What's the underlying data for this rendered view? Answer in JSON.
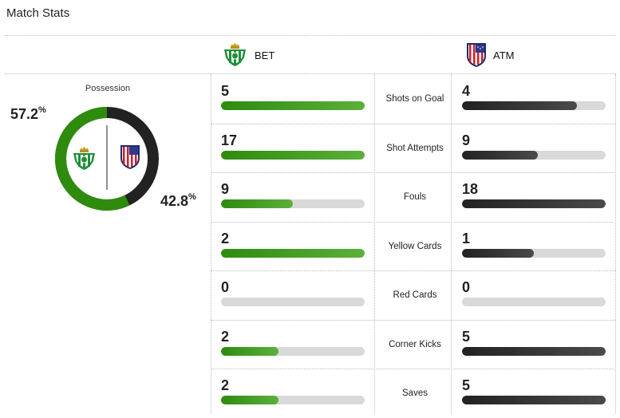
{
  "title": "Match Stats",
  "home": {
    "abbr": "BET",
    "crest_icon": "real-betis-crest-icon",
    "color": "#2e8b0e"
  },
  "away": {
    "abbr": "ATM",
    "crest_icon": "atletico-madrid-crest-icon",
    "color": "#222222"
  },
  "possession": {
    "label": "Possession",
    "home_value": "57.2",
    "away_value": "42.8",
    "unit": "%",
    "home_fraction": 0.572,
    "away_fraction": 0.428
  },
  "stats": [
    {
      "label": "Shots on Goal",
      "home": "5",
      "away": "4",
      "home_fill": 1.0,
      "away_fill": 0.8
    },
    {
      "label": "Shot Attempts",
      "home": "17",
      "away": "9",
      "home_fill": 1.0,
      "away_fill": 0.53
    },
    {
      "label": "Fouls",
      "home": "9",
      "away": "18",
      "home_fill": 0.5,
      "away_fill": 1.0
    },
    {
      "label": "Yellow Cards",
      "home": "2",
      "away": "1",
      "home_fill": 1.0,
      "away_fill": 0.5
    },
    {
      "label": "Red Cards",
      "home": "0",
      "away": "0",
      "home_fill": 0.0,
      "away_fill": 0.0
    },
    {
      "label": "Corner Kicks",
      "home": "2",
      "away": "5",
      "home_fill": 0.4,
      "away_fill": 1.0
    },
    {
      "label": "Saves",
      "home": "2",
      "away": "5",
      "home_fill": 0.4,
      "away_fill": 1.0
    }
  ]
}
